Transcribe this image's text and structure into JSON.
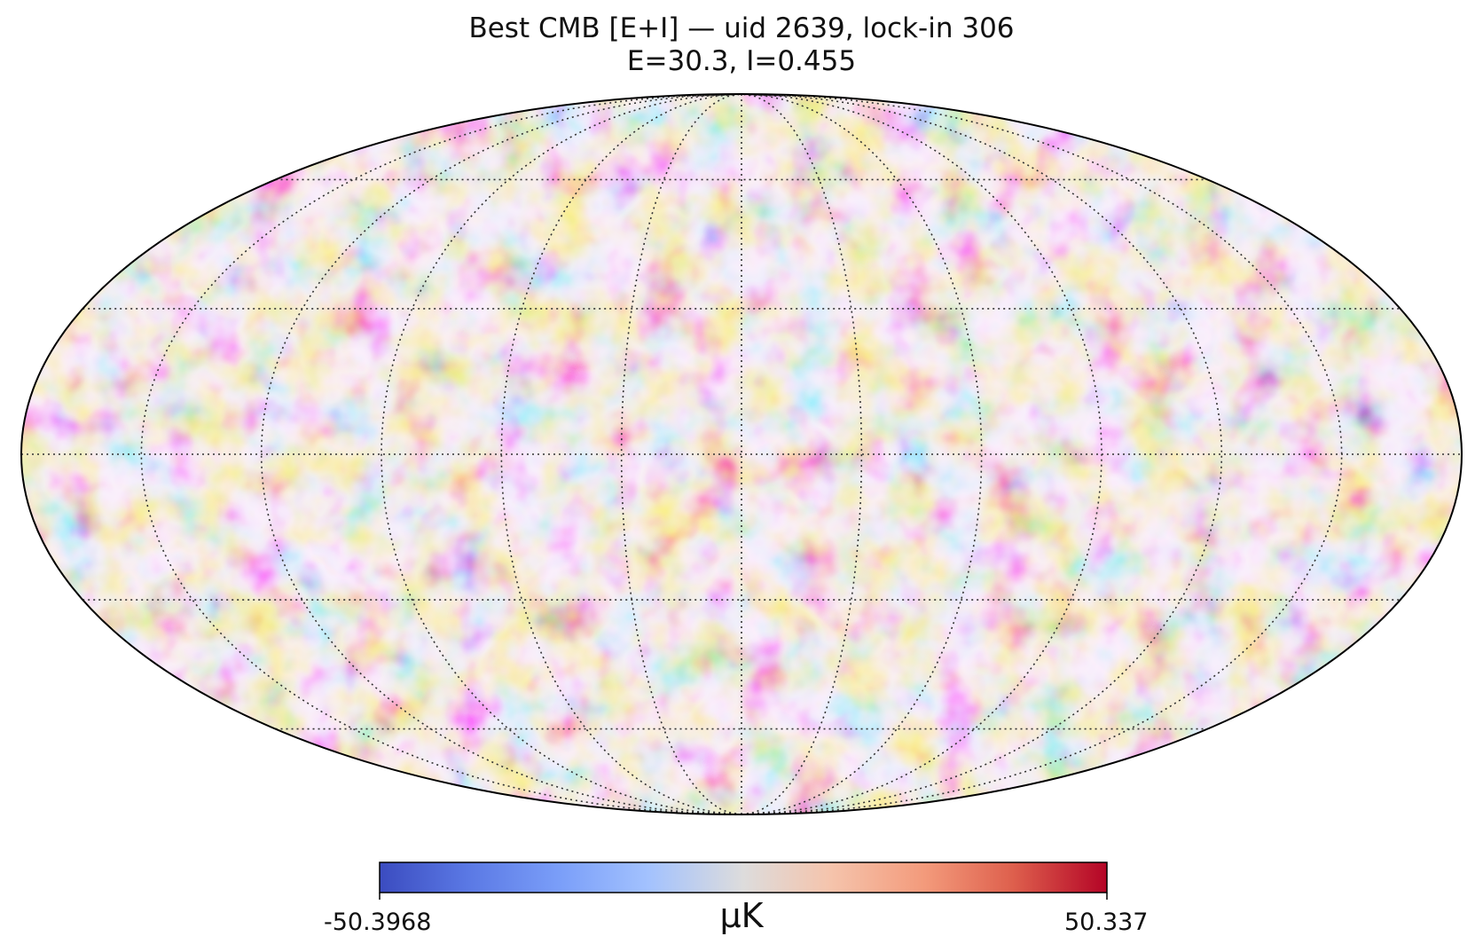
{
  "title": {
    "line1": "Best CMB [E+I] — uid 2639, lock-in 306",
    "line2": "E=30.3, I=0.455"
  },
  "map": {
    "projection": "mollweide",
    "graticule_lon_step_deg": 30,
    "graticule_lat_step_deg": 30,
    "graticule_style": "dotted",
    "colormap": "coolwarm",
    "colors": {
      "low": "#3b4cc0",
      "mid": "#dddddd",
      "high": "#b40426"
    }
  },
  "colorbar": {
    "min_label": "-50.3968",
    "max_label": "50.337",
    "unit": "μK"
  }
}
